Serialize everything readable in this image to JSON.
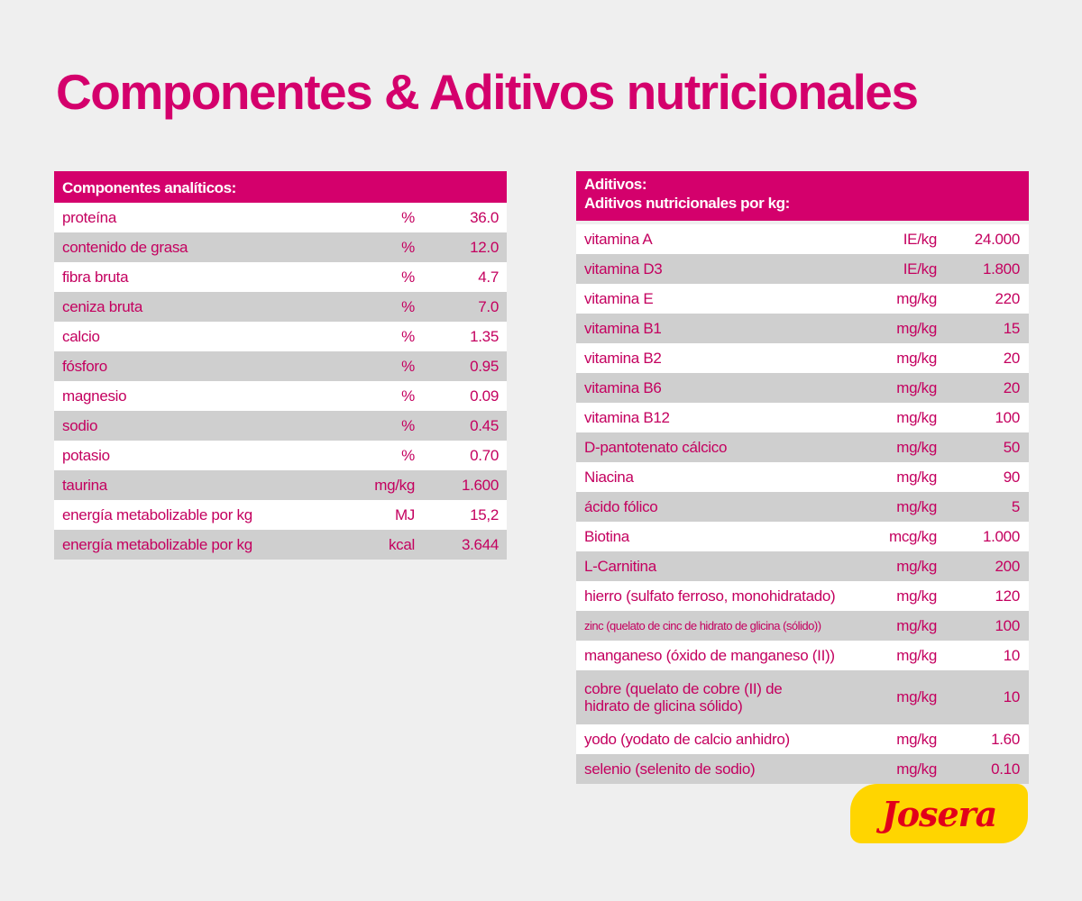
{
  "header": {
    "title": "Componentes & Aditivos nutricionales"
  },
  "analytic_table": {
    "heading": "Componentes analíticos:",
    "rows": [
      [
        "proteína",
        "%",
        "36.0"
      ],
      [
        "contenido de grasa",
        "%",
        "12.0"
      ],
      [
        "fibra bruta",
        "%",
        "4.7"
      ],
      [
        "ceniza bruta",
        "%",
        "7.0"
      ],
      [
        "calcio",
        "%",
        "1.35"
      ],
      [
        "fósforo",
        "%",
        "0.95"
      ],
      [
        "magnesio",
        "%",
        "0.09"
      ],
      [
        "sodio",
        "%",
        "0.45"
      ],
      [
        "potasio",
        "%",
        "0.70"
      ],
      [
        "taurina",
        "mg/kg",
        "1.600"
      ],
      [
        "energía metabolizable por kg",
        "MJ",
        "15,2"
      ],
      [
        "energía metabolizable por kg",
        "kcal",
        "3.644"
      ]
    ]
  },
  "additives_table": {
    "heading": "Aditivos:",
    "subheading": "Aditivos nutricionales por kg:",
    "rows": [
      [
        "vitamina A",
        "IE/kg",
        "24.000"
      ],
      [
        "vitamina D3",
        "IE/kg",
        "1.800"
      ],
      [
        "vitamina E",
        "mg/kg",
        "220"
      ],
      [
        "vitamina B1",
        "mg/kg",
        "15"
      ],
      [
        "vitamina B2",
        "mg/kg",
        "20"
      ],
      [
        "vitamina B6",
        "mg/kg",
        "20"
      ],
      [
        "vitamina B12",
        "mg/kg",
        "100"
      ],
      [
        "D-pantotenato cálcico",
        "mg/kg",
        "50"
      ],
      [
        "Niacina",
        "mg/kg",
        "90"
      ],
      [
        "ácido fólico",
        "mg/kg",
        "5"
      ],
      [
        "Biotina",
        "mcg/kg",
        "1.000"
      ],
      [
        "L-Carnitina",
        "mg/kg",
        "200"
      ],
      [
        "hierro (sulfato ferroso, monohidratado)",
        "mg/kg",
        "120"
      ],
      [
        "zinc (quelato de cinc de hidrato de glicina (sólido))",
        "mg/kg",
        "100"
      ],
      [
        "manganeso (óxido de manganeso (II))",
        "mg/kg",
        "10"
      ],
      [
        "cobre (quelato de cobre (II) de hidrato de glicina sólido)",
        "mg/kg",
        "10"
      ],
      [
        "yodo (yodato de calcio anhidro)",
        "mg/kg",
        "1.60"
      ],
      [
        "selenio (selenito de sodio)",
        "mg/kg",
        "0.10"
      ]
    ]
  },
  "logo": {
    "text": "Josera"
  }
}
